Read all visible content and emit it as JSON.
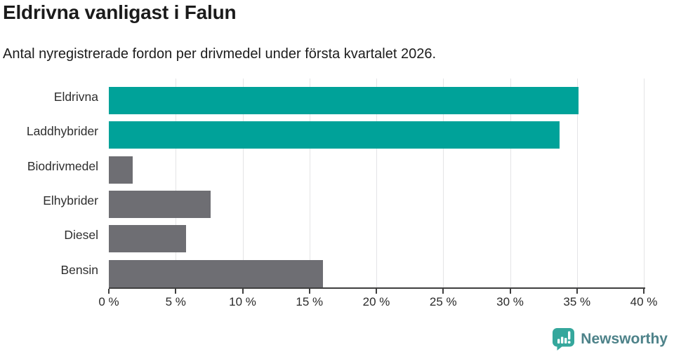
{
  "header": {
    "title": "Eldrivna vanligast i Falun",
    "subtitle": "Antal nyregistrerade fordon per drivmedel under första kvartalet 2026."
  },
  "chart_data": {
    "type": "bar",
    "orientation": "horizontal",
    "title": "Eldrivna vanligast i Falun",
    "subtitle": "Antal nyregistrerade fordon per drivmedel under första kvartalet 2026.",
    "categories": [
      "Eldrivna",
      "Laddhybrider",
      "Biodrivmedel",
      "Elhybrider",
      "Diesel",
      "Bensin"
    ],
    "values": [
      35.1,
      33.7,
      1.8,
      7.6,
      5.8,
      16.0
    ],
    "bar_colors": [
      "#00a299",
      "#00a299",
      "#6e6e73",
      "#6e6e73",
      "#6e6e73",
      "#6e6e73"
    ],
    "xlabel": "",
    "ylabel": "",
    "xlim": [
      0,
      40
    ],
    "xticks": [
      0,
      5,
      10,
      15,
      20,
      25,
      30,
      35,
      40
    ],
    "xtick_suffix": " %",
    "grid": true,
    "legend": "none"
  },
  "branding": {
    "logo_text": "Newsworthy"
  },
  "colors": {
    "accent_teal": "#00a299",
    "bar_gray": "#6e6e73",
    "grid": "#e4e4e6",
    "axis": "#3f3f3f",
    "logo_icon": "#35a79c",
    "logo_text": "#4d8289"
  }
}
